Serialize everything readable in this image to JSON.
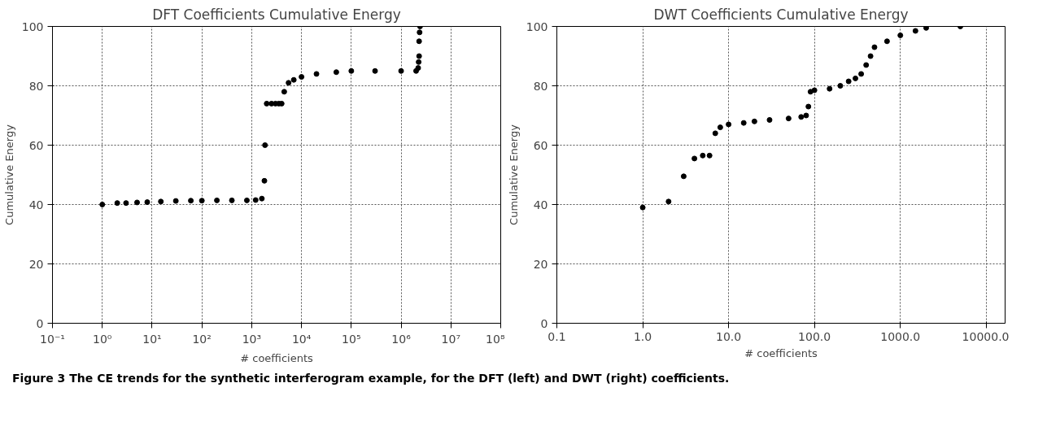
{
  "chart_data": [
    {
      "type": "scatter",
      "title": "DFT Coefficients Cumulative Energy",
      "xlabel": "# coefficients",
      "ylabel": "Cumulative Energy",
      "log": "x",
      "marker": "circle",
      "grid": true,
      "xlim": [
        0.1,
        100000000
      ],
      "ylim": [
        0,
        100
      ],
      "xticks": [
        {
          "value": 0.1,
          "label": "10⁻¹"
        },
        {
          "value": 1,
          "label": "10⁰"
        },
        {
          "value": 10,
          "label": "10¹"
        },
        {
          "value": 100,
          "label": "10²"
        },
        {
          "value": 1000,
          "label": "10³"
        },
        {
          "value": 10000,
          "label": "10⁴"
        },
        {
          "value": 100000,
          "label": "10⁵"
        },
        {
          "value": 1000000,
          "label": "10⁶"
        },
        {
          "value": 10000000,
          "label": "10⁷"
        },
        {
          "value": 100000000,
          "label": "10⁸"
        }
      ],
      "yticks": [
        0,
        20,
        40,
        60,
        80,
        100
      ],
      "series": [
        {
          "color": "#000000",
          "x": [
            1,
            2,
            3,
            5,
            8,
            15,
            30,
            60,
            100,
            200,
            400,
            800,
            1200,
            1600,
            1800,
            1850,
            2000,
            2500,
            3000,
            3500,
            4000,
            4500,
            5500,
            7000,
            10000,
            20000,
            50000,
            100000,
            300000,
            1000000,
            2000000,
            2200000,
            2250000,
            2300000,
            2300000,
            2350000,
            2400000
          ],
          "values": [
            40,
            40.5,
            40.5,
            40.7,
            40.8,
            41,
            41.2,
            41.3,
            41.3,
            41.4,
            41.4,
            41.4,
            41.5,
            42,
            48,
            60,
            74,
            74,
            74,
            74,
            74,
            78,
            81,
            82,
            83,
            84,
            84.6,
            85,
            85,
            85,
            85,
            86,
            88,
            90,
            95,
            98,
            100
          ]
        }
      ]
    },
    {
      "type": "scatter",
      "title": "DWT Coefficients Cumulative Energy",
      "xlabel": "# coefficients",
      "ylabel": "Cumulative Energy",
      "log": "x",
      "marker": "circle",
      "grid": true,
      "xlim": [
        0.1,
        16600
      ],
      "ylim": [
        0,
        100
      ],
      "xticks": [
        {
          "value": 0.1,
          "label": "0.1"
        },
        {
          "value": 1,
          "label": "1.0"
        },
        {
          "value": 10,
          "label": "10.0"
        },
        {
          "value": 100,
          "label": "100.0"
        },
        {
          "value": 1000,
          "label": "1000.0"
        },
        {
          "value": 10000,
          "label": "10000.0"
        }
      ],
      "yticks": [
        0,
        20,
        40,
        60,
        80,
        100
      ],
      "annotations": [
        "Figure 3 The CE trends for the synthetic interferogram example, for the DFT (left) and DWT (right) coefficients."
      ],
      "series": [
        {
          "color": "#000000",
          "x": [
            1,
            2,
            3,
            4,
            5,
            6,
            7,
            8,
            10,
            15,
            20,
            30,
            50,
            70,
            80,
            85,
            90,
            100,
            150,
            200,
            250,
            300,
            350,
            400,
            450,
            500,
            700,
            1000,
            1500,
            2000,
            5000
          ],
          "values": [
            39,
            41,
            49.5,
            55.5,
            56.5,
            56.5,
            64,
            66,
            67,
            67.5,
            68,
            68.5,
            69,
            69.5,
            70,
            73,
            78,
            78.5,
            79,
            80,
            81.5,
            82.5,
            84,
            87,
            90,
            93,
            95,
            97,
            98.5,
            99.5,
            100
          ]
        }
      ]
    }
  ]
}
